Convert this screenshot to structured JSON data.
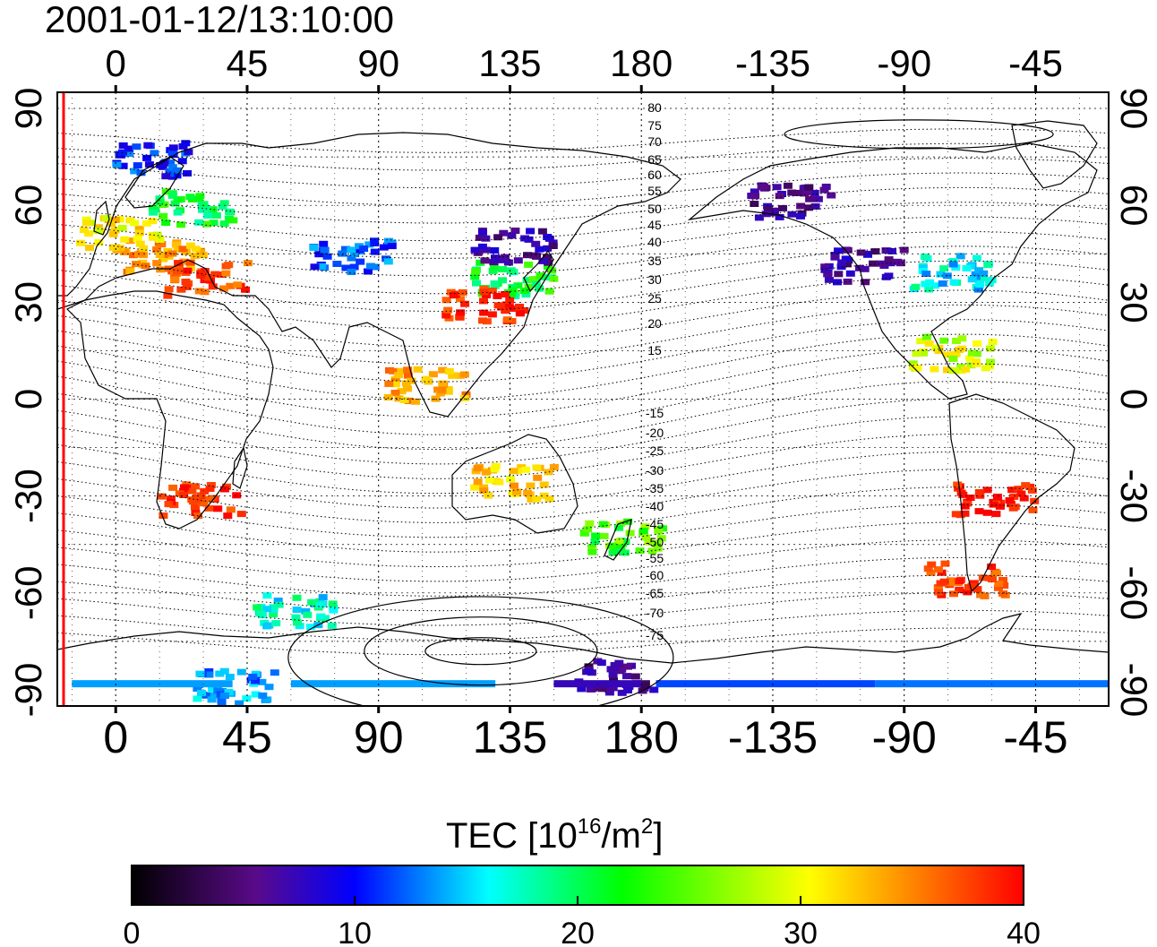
{
  "timestamp": "2001-01-12/13:10:00",
  "map": {
    "lon_ticks_top": [
      "0",
      "45",
      "90",
      "135",
      "180",
      "-135",
      "-90",
      "-45"
    ],
    "lon_ticks_bottom": [
      "0",
      "45",
      "90",
      "135",
      "180",
      "-135",
      "-90",
      "-45"
    ],
    "lat_ticks_left": [
      "90",
      "60",
      "30",
      "0",
      "-30",
      "-60",
      "-90"
    ],
    "lat_ticks_right": [
      "90",
      "60",
      "30",
      "0",
      "-30",
      "-60",
      "-90"
    ],
    "lon_range": [
      -20,
      340
    ],
    "lat_range": [
      -95,
      95
    ],
    "grid": true,
    "sunline_longitude": -17,
    "sunline_color": "#ff0000",
    "magnetic_latitude_labels_north": [
      "80",
      "75",
      "70",
      "65",
      "60",
      "55",
      "50",
      "45",
      "40",
      "35",
      "30",
      "25",
      "20",
      "15"
    ],
    "magnetic_latitude_labels_south": [
      "-15",
      "-20",
      "-25",
      "-30",
      "-35",
      "-40",
      "-45",
      "-50",
      "-55",
      "-60",
      "-65",
      "-70",
      "-75"
    ]
  },
  "colorbar": {
    "title_prefix": "TEC  [10",
    "title_exp1": "16",
    "title_mid": "/m",
    "title_exp2": "2",
    "title_suffix": "]",
    "ticks": [
      "0",
      "10",
      "20",
      "30",
      "40"
    ],
    "range": [
      0,
      40
    ],
    "colormap": [
      "#000000",
      "#5a0a8a",
      "#0000ff",
      "#00ffff",
      "#00ff00",
      "#ffff00",
      "#ff8000",
      "#ff0000"
    ]
  },
  "chart_data": {
    "type": "heatmap",
    "title": "2001-01-12/13:10:00",
    "variable": "TEC",
    "units": "10^16/m^2",
    "range": [
      0,
      40
    ],
    "regions": [
      {
        "lon": 15,
        "lat": 45,
        "tec": 33
      },
      {
        "lon": 0,
        "lat": 52,
        "tec": 30
      },
      {
        "lon": 25,
        "lat": 60,
        "tec": 22
      },
      {
        "lon": 30,
        "lat": 38,
        "tec": 37
      },
      {
        "lon": 10,
        "lat": 75,
        "tec": 12
      },
      {
        "lon": 80,
        "lat": 45,
        "tec": 13
      },
      {
        "lon": 135,
        "lat": 38,
        "tec": 22
      },
      {
        "lon": 135,
        "lat": 48,
        "tec": 7
      },
      {
        "lon": 125,
        "lat": 30,
        "tec": 38
      },
      {
        "lon": 105,
        "lat": 5,
        "tec": 33
      },
      {
        "lon": 28,
        "lat": -30,
        "tec": 38
      },
      {
        "lon": 135,
        "lat": -25,
        "tec": 31
      },
      {
        "lon": 172,
        "lat": -42,
        "tec": 24
      },
      {
        "lon": 230,
        "lat": 62,
        "tec": 6
      },
      {
        "lon": 255,
        "lat": 42,
        "tec": 7
      },
      {
        "lon": 285,
        "lat": 40,
        "tec": 17
      },
      {
        "lon": 285,
        "lat": 15,
        "tec": 28
      },
      {
        "lon": 300,
        "lat": -30,
        "tec": 39
      },
      {
        "lon": 290,
        "lat": -55,
        "tec": 37
      },
      {
        "lon": 60,
        "lat": -65,
        "tec": 18
      },
      {
        "lon": 40,
        "lat": -88,
        "tec": 15
      },
      {
        "lon": 170,
        "lat": -85,
        "tec": 6
      }
    ]
  }
}
